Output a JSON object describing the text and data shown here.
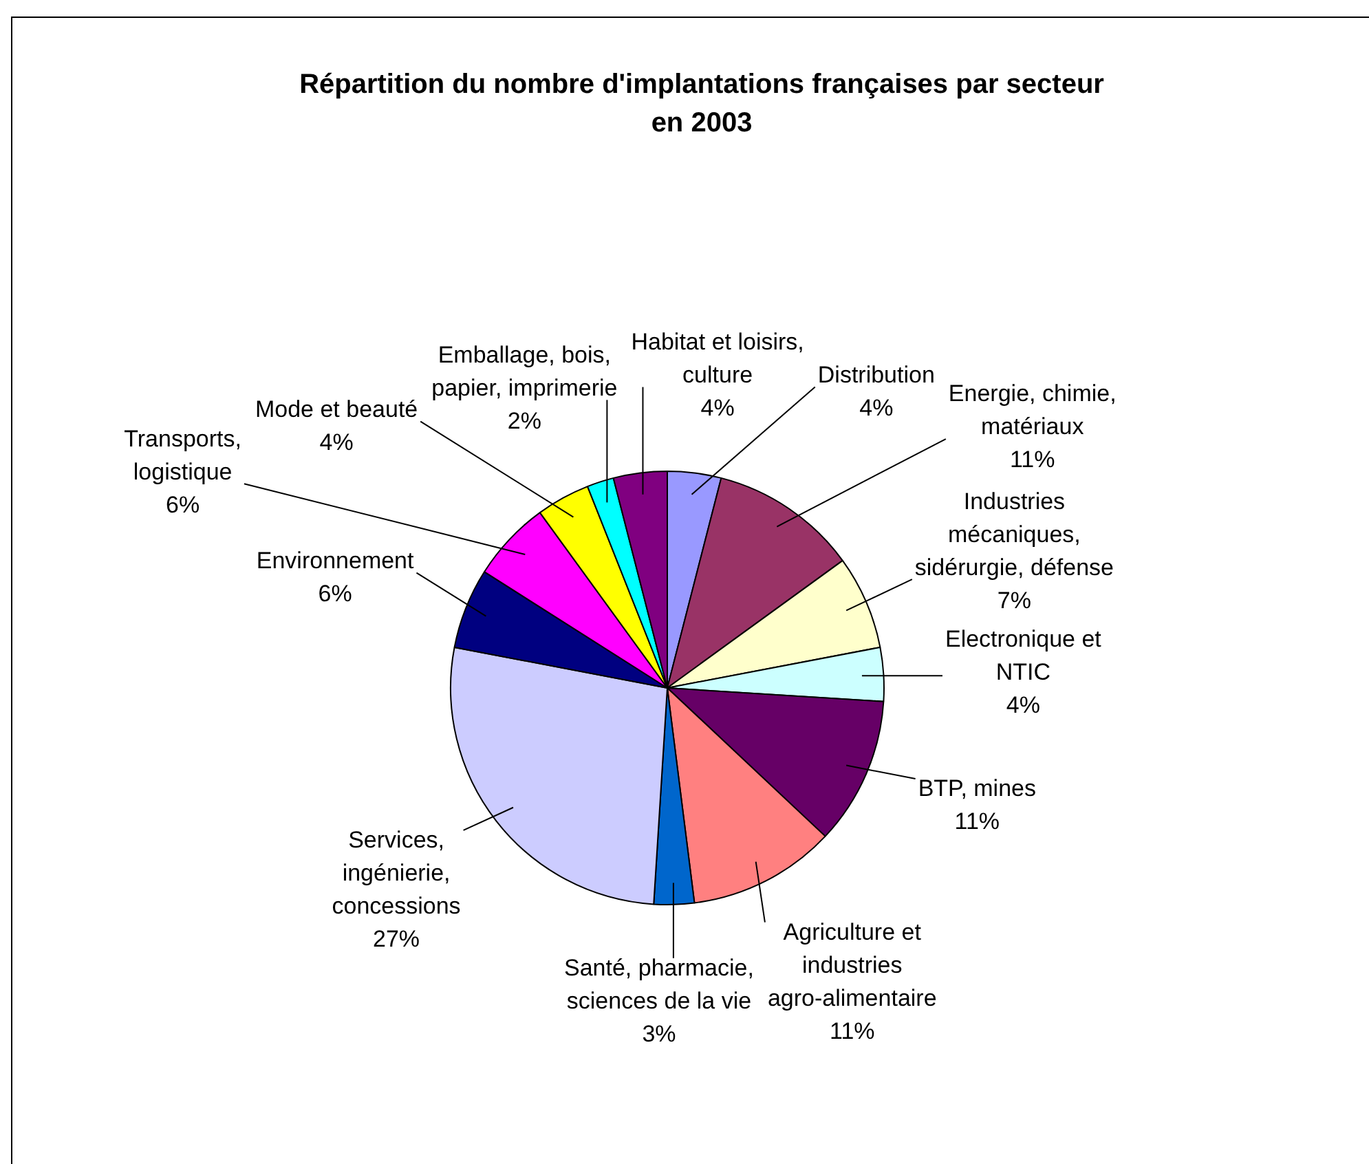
{
  "chart_data": {
    "type": "pie",
    "title": "Répartition du nombre d'implantations françaises par secteur en 2003",
    "categories": [
      "Distribution",
      "Energie, chimie, matériaux",
      "Industries mécaniques, sidérurgie, défense",
      "Electronique et NTIC",
      "BTP, mines",
      "Agriculture et industries agro-alimentaire",
      "Santé, pharmacie, sciences de la vie",
      "Services, ingénierie, concessions",
      "Environnement",
      "Transports, logistique",
      "Mode et beauté",
      "Emballage, bois, papier, imprimerie",
      "Habitat et loisirs, culture"
    ],
    "values": [
      4,
      11,
      7,
      4,
      11,
      11,
      3,
      27,
      6,
      6,
      4,
      2,
      4
    ],
    "value_labels": [
      "4%",
      "11%",
      "7%",
      "4%",
      "11%",
      "11%",
      "3%",
      "27%",
      "6%",
      "6%",
      "4%",
      "2%",
      "4%"
    ],
    "colors": [
      "#9999ff",
      "#993366",
      "#ffffcc",
      "#ccffff",
      "#660066",
      "#ff8080",
      "#0066cc",
      "#ccccff",
      "#000080",
      "#ff00ff",
      "#ffff00",
      "#00ffff",
      "#800080"
    ],
    "legend": false
  }
}
